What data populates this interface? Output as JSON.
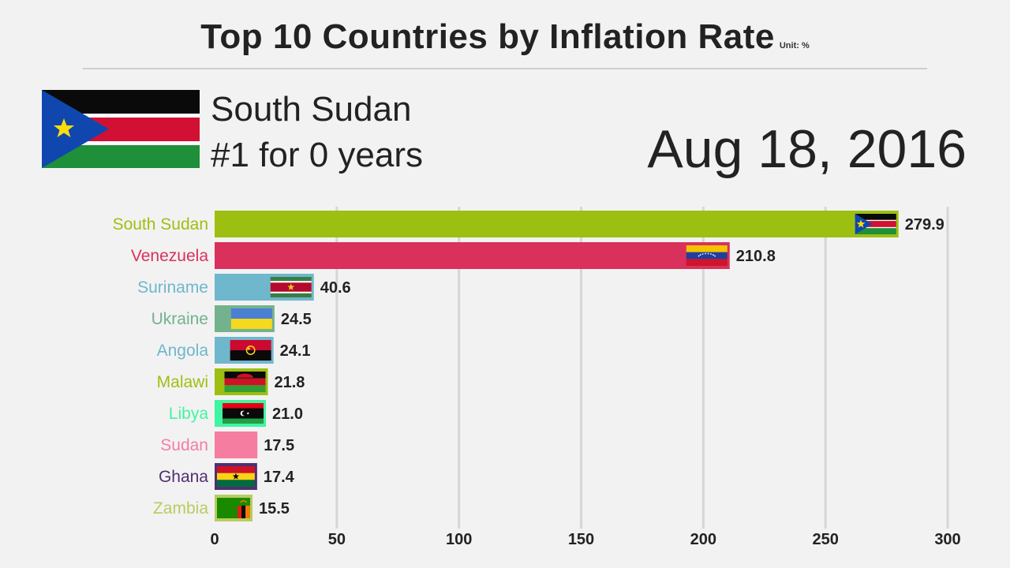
{
  "header": {
    "title": "Top 10 Countries by Inflation Rate",
    "unit": "Unit: %"
  },
  "leader": {
    "name": "South Sudan",
    "years_text": "#1 for 0 years",
    "flag": "south-sudan-flag"
  },
  "date": "Aug 18, 2016",
  "chart_data": {
    "type": "bar",
    "orientation": "horizontal",
    "categories": [
      "South Sudan",
      "Venezuela",
      "Suriname",
      "Ukraine",
      "Angola",
      "Malawi",
      "Libya",
      "Sudan",
      "Ghana",
      "Zambia"
    ],
    "values": [
      279.9,
      210.8,
      40.6,
      24.5,
      24.1,
      21.8,
      21.0,
      17.5,
      17.4,
      15.5
    ],
    "value_labels": [
      "279.9",
      "210.8",
      "40.6",
      "24.5",
      "24.1",
      "21.8",
      "21.0",
      "17.5",
      "17.4",
      "15.5"
    ],
    "colors": [
      "#9dbf12",
      "#d9315b",
      "#6fb7cc",
      "#73b28c",
      "#6fb7cc",
      "#9dbf12",
      "#3ff5a1",
      "#f57da0",
      "#4f2f72",
      "#b8cc60"
    ],
    "flags": [
      "south-sudan-flag",
      "venezuela-flag",
      "suriname-flag",
      "ukraine-flag",
      "angola-flag",
      "malawi-flag",
      "libya-flag",
      "",
      "ghana-flag",
      "zambia-flag"
    ],
    "xlim": [
      0,
      300
    ],
    "xticks": [
      "0",
      "50",
      "100",
      "150",
      "200",
      "250",
      "300"
    ],
    "grid": true,
    "title": "Top 10 Countries by Inflation Rate",
    "xlabel": "",
    "ylabel": ""
  }
}
